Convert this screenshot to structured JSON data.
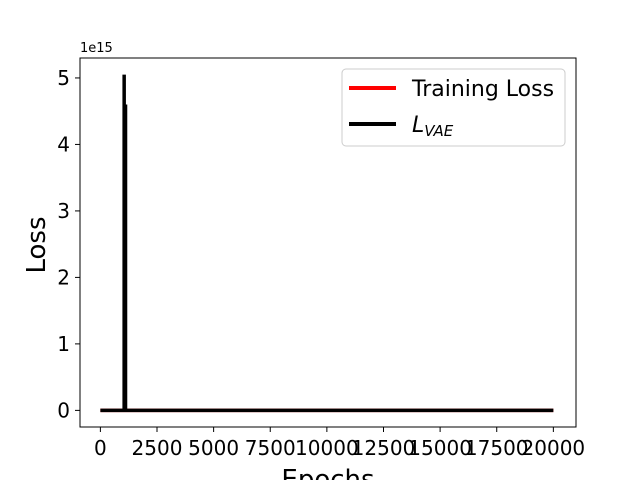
{
  "chart_data": {
    "type": "line",
    "title": "",
    "xlabel": "Epochs",
    "ylabel": "Loss",
    "y_offset_text": "1e15",
    "xlim": [
      -900,
      21000
    ],
    "ylim": [
      -0.25,
      5.3
    ],
    "x_ticks": [
      0,
      2500,
      5000,
      7500,
      10000,
      12500,
      15000,
      17500,
      20000
    ],
    "x_tick_labels": [
      "0",
      "2500",
      "5000",
      "7500",
      "10000",
      "12500",
      "15000",
      "17500",
      "20000"
    ],
    "y_ticks": [
      0,
      1,
      2,
      3,
      4,
      5
    ],
    "y_tick_labels": [
      "0",
      "1",
      "2",
      "3",
      "4",
      "5"
    ],
    "grid": false,
    "legend_position": "top-right",
    "series": [
      {
        "name": "Training Loss",
        "label_main": "Training Loss",
        "label_sub": "",
        "color": "#ff0000",
        "x": [
          0,
          1050,
          1080,
          1110,
          20000
        ],
        "y": [
          0,
          0,
          0,
          0,
          0
        ]
      },
      {
        "name": "L_VAE",
        "label_main": "L",
        "label_sub": "VAE",
        "color": "#000000",
        "x": [
          0,
          1050,
          1050,
          1060,
          1070,
          1080,
          1090,
          1100,
          1110,
          1110,
          20000
        ],
        "y": [
          0,
          0,
          5.05,
          0.8,
          4.2,
          1.5,
          3.3,
          0.3,
          4.6,
          0,
          0
        ]
      }
    ]
  }
}
